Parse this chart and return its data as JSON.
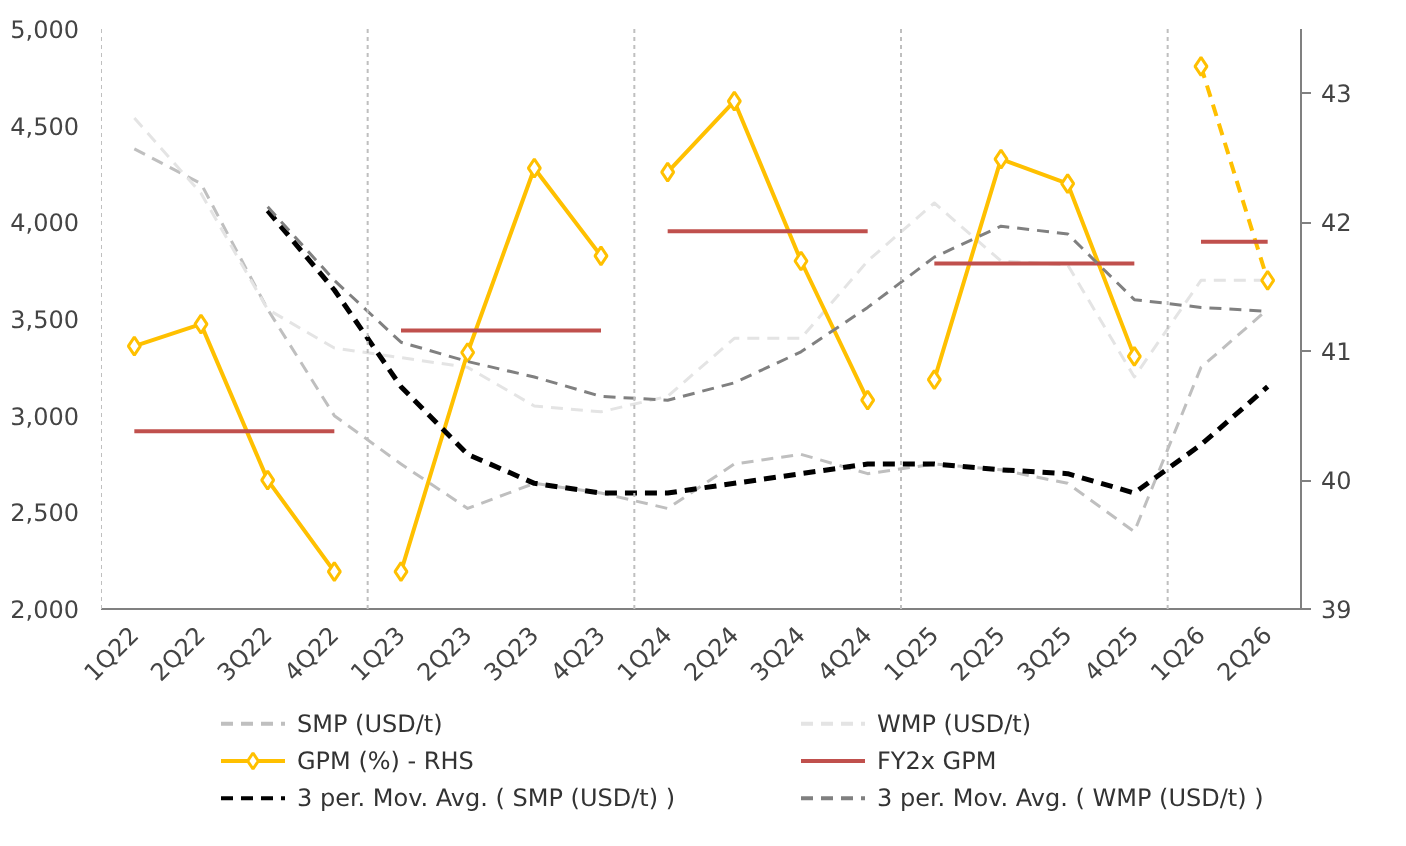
{
  "chart_data": {
    "type": "line",
    "categories": [
      "1Q22",
      "2Q22",
      "3Q22",
      "4Q22",
      "1Q23",
      "2Q23",
      "3Q23",
      "4Q23",
      "1Q24",
      "2Q24",
      "3Q24",
      "4Q24",
      "1Q25",
      "2Q25",
      "3Q25",
      "4Q25",
      "1Q26",
      "2Q26"
    ],
    "ylim": [
      2000,
      5000
    ],
    "yticks": [
      {
        "value": 2000,
        "label": "2,000"
      },
      {
        "value": 2500,
        "label": "2,500"
      },
      {
        "value": 3000,
        "label": "3,000"
      },
      {
        "value": 3500,
        "label": "3,500"
      },
      {
        "value": 4000,
        "label": "4,000"
      },
      {
        "value": 4500,
        "label": "4,500"
      },
      {
        "value": 5000,
        "label": "5,000"
      }
    ],
    "y2lim": [
      39,
      43.5
    ],
    "y2ticks": [
      39,
      40,
      41,
      42,
      43
    ],
    "legend": "bottom",
    "grid": false,
    "series": [
      {
        "name": "SMP (USD/t)",
        "color": "#bfbfbf",
        "line_style": "dashed",
        "values": [
          4380,
          4200,
          3550,
          3000,
          2750,
          2520,
          2650,
          2600,
          2520,
          2750,
          2800,
          2700,
          2750,
          2720,
          2650,
          2400,
          3250,
          3550
        ]
      },
      {
        "name": "WMP (USD/t)",
        "color": "#e4e4e4",
        "line_style": "dashed",
        "values": [
          4540,
          4150,
          3550,
          3350,
          3300,
          3250,
          3050,
          3020,
          3100,
          3400,
          3400,
          3800,
          4100,
          3800,
          3780,
          3200,
          3700,
          3700
        ]
      },
      {
        "name": "GPM (%) - RHS",
        "axis": "y2",
        "color": "#ffc000",
        "marker": "diamond",
        "line_style": "solid",
        "values": [
          41.04,
          41.21,
          40.0,
          39.29,
          null,
          null,
          null,
          null,
          null,
          null,
          null,
          null,
          null,
          null,
          null,
          null,
          null,
          null
        ]
      },
      {
        "axis": "y2",
        "color": "#ffc000",
        "marker": "diamond",
        "line_style": "solid",
        "values": [
          null,
          null,
          null,
          null,
          39.29,
          40.99,
          42.42,
          41.74,
          null,
          null,
          null,
          null,
          null,
          null,
          null,
          null,
          null,
          null
        ]
      },
      {
        "axis": "y2",
        "color": "#ffc000",
        "marker": "diamond",
        "line_style": "solid",
        "values": [
          null,
          null,
          null,
          null,
          null,
          null,
          null,
          null,
          42.39,
          42.94,
          41.7,
          40.62,
          null,
          null,
          null,
          null,
          null,
          null
        ]
      },
      {
        "axis": "y2",
        "color": "#ffc000",
        "marker": "diamond",
        "line_style": "solid",
        "values": [
          null,
          null,
          null,
          null,
          null,
          null,
          null,
          null,
          null,
          null,
          null,
          null,
          40.78,
          42.49,
          42.3,
          40.96,
          null,
          null
        ]
      },
      {
        "axis": "y2",
        "color": "#ffc000",
        "marker": "diamond",
        "line_style": "dashed",
        "values": [
          null,
          null,
          null,
          null,
          null,
          null,
          null,
          null,
          null,
          null,
          null,
          null,
          null,
          null,
          null,
          null,
          43.21,
          41.55
        ]
      },
      {
        "name": "FY2x GPM",
        "axis": "y2",
        "color": "#c0504d",
        "line_style": "solid",
        "values": [
          40.38,
          40.38,
          40.38,
          40.38,
          null,
          null,
          null,
          null,
          null,
          null,
          null,
          null,
          null,
          null,
          null,
          null,
          null,
          null
        ]
      },
      {
        "axis": "y2",
        "color": "#c0504d",
        "line_style": "solid",
        "values": [
          null,
          null,
          null,
          null,
          41.16,
          41.16,
          41.16,
          41.16,
          null,
          null,
          null,
          null,
          null,
          null,
          null,
          null,
          null,
          null
        ]
      },
      {
        "axis": "y2",
        "color": "#c0504d",
        "line_style": "solid",
        "values": [
          null,
          null,
          null,
          null,
          null,
          null,
          null,
          null,
          41.93,
          41.93,
          41.93,
          41.93,
          null,
          null,
          null,
          null,
          null,
          null
        ]
      },
      {
        "axis": "y2",
        "color": "#c0504d",
        "line_style": "solid",
        "values": [
          null,
          null,
          null,
          null,
          null,
          null,
          null,
          null,
          null,
          null,
          null,
          null,
          41.68,
          41.68,
          41.68,
          41.68,
          null,
          null
        ]
      },
      {
        "axis": "y2",
        "color": "#c0504d",
        "line_style": "solid",
        "values": [
          null,
          null,
          null,
          null,
          null,
          null,
          null,
          null,
          null,
          null,
          null,
          null,
          null,
          null,
          null,
          null,
          41.85,
          41.85
        ]
      },
      {
        "name": "3 per. Mov. Avg. ( SMP (USD/t) )",
        "color": "#000000",
        "line_style": "dashed",
        "values": [
          null,
          null,
          4060,
          3650,
          3150,
          2800,
          2650,
          2600,
          2600,
          2650,
          2700,
          2750,
          2750,
          2720,
          2700,
          2600,
          2850,
          3150
        ]
      },
      {
        "name": "3 per. Mov. Avg. ( WMP (USD/t) )",
        "color": "#808080",
        "line_style": "dashed",
        "values": [
          null,
          null,
          4080,
          3700,
          3380,
          3280,
          3200,
          3100,
          3080,
          3170,
          3330,
          3560,
          3820,
          3980,
          3940,
          3600,
          3560,
          3540
        ]
      }
    ]
  }
}
